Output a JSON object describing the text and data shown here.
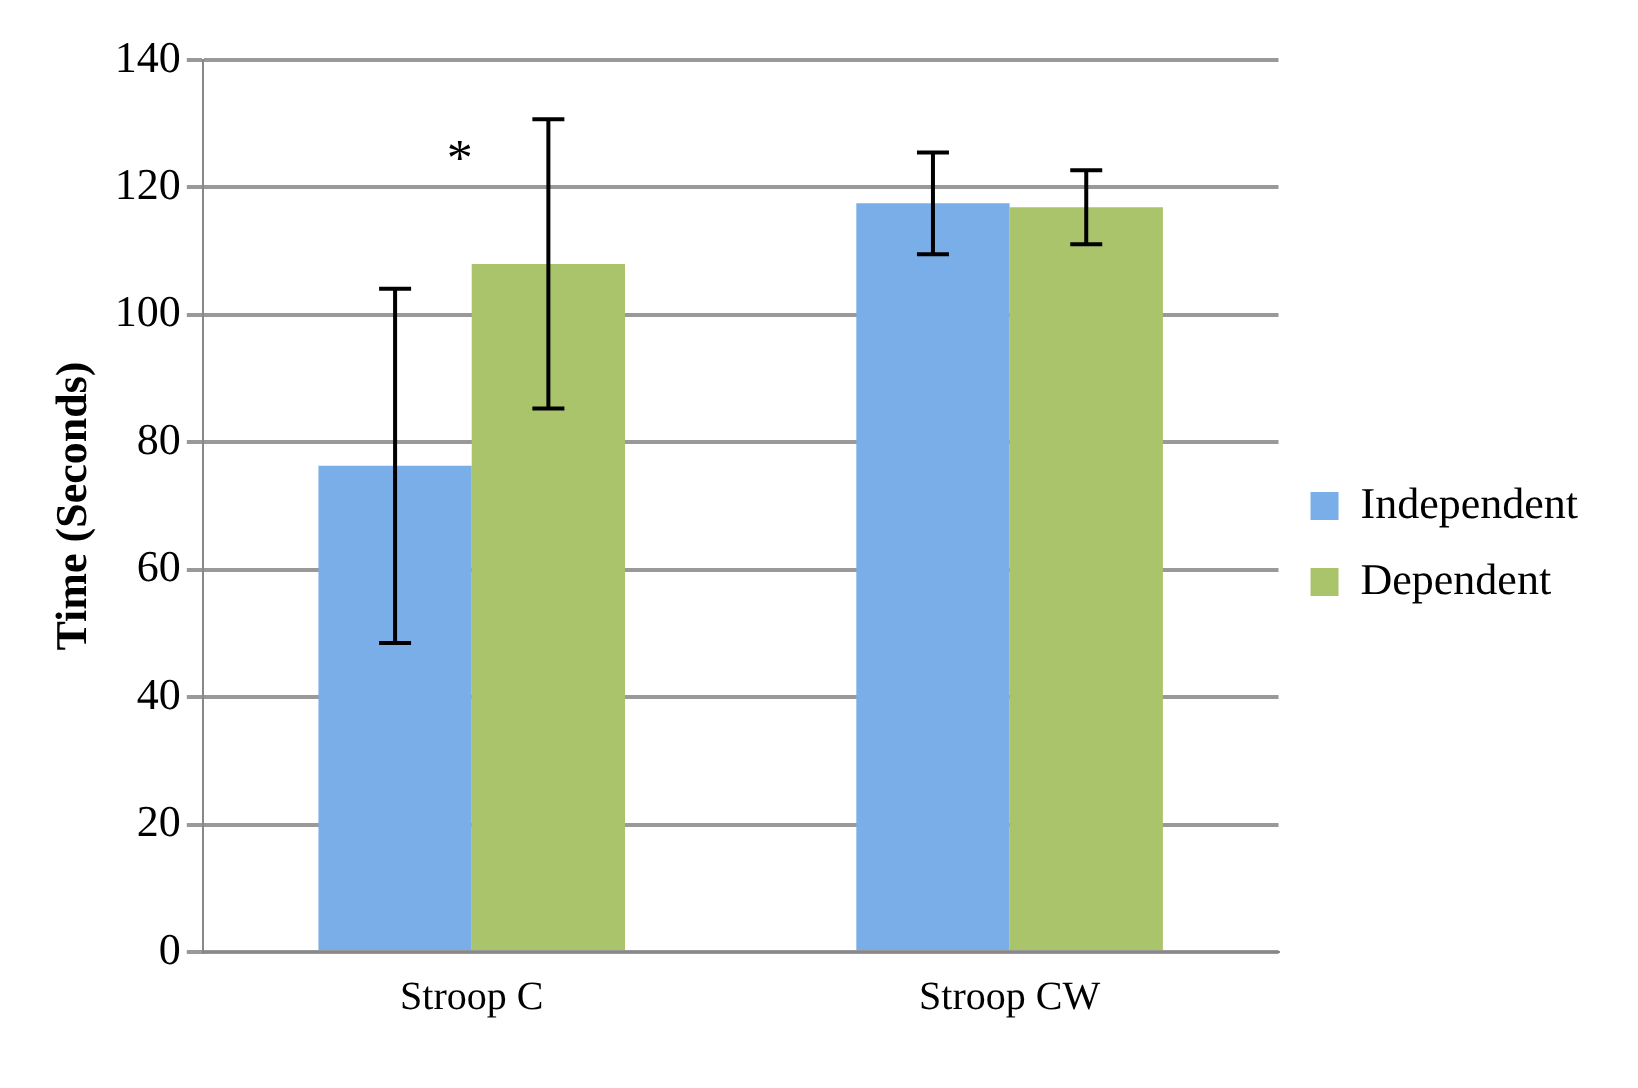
{
  "chart_data": {
    "type": "bar",
    "ylabel": "Time (Seconds)",
    "categories": [
      "Stroop C",
      "Stroop CW"
    ],
    "series": [
      {
        "name": "Independent",
        "color": "#7aaee8",
        "values": [
          76.3,
          117.5
        ],
        "errors": [
          27.8,
          8
        ]
      },
      {
        "name": "Dependent",
        "color": "#aac46c",
        "values": [
          108,
          116.9
        ],
        "errors": [
          22.7,
          5.8
        ]
      }
    ],
    "ylim": [
      0,
      140
    ],
    "yticks": [
      0,
      20,
      40,
      60,
      80,
      100,
      120,
      140
    ],
    "grid": "y",
    "legend": "right",
    "annotations": [
      "*"
    ]
  }
}
